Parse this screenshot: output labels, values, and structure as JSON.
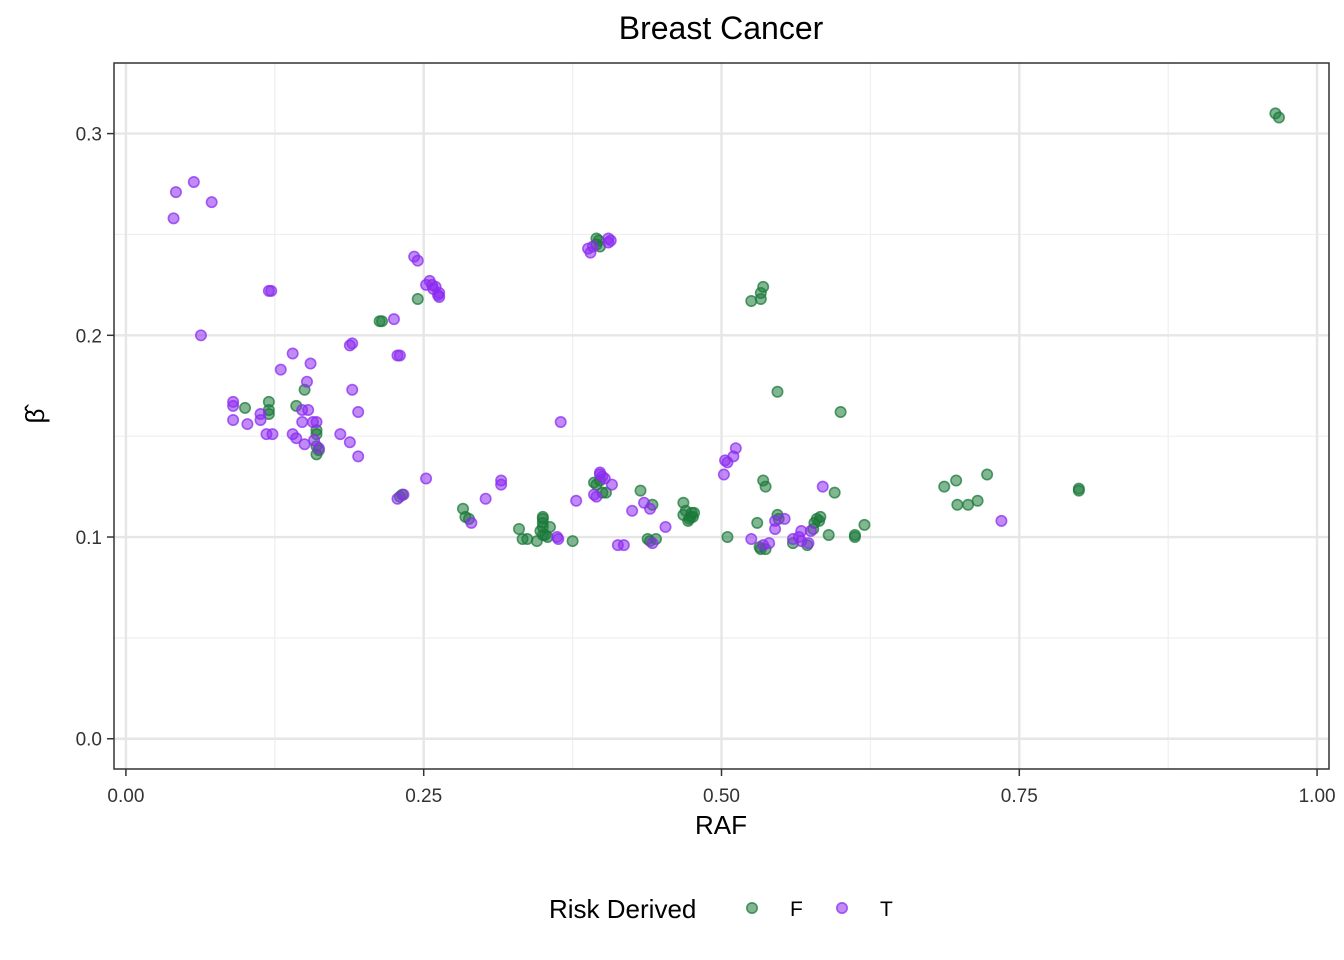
{
  "chart_data": {
    "type": "scatter",
    "title": "Breast Cancer",
    "xlabel": "RAF",
    "ylabel": "β̂",
    "xlim": [
      -0.01,
      1.01
    ],
    "ylim": [
      -0.015,
      0.335
    ],
    "x_ticks": [
      0.0,
      0.25,
      0.5,
      0.75,
      1.0
    ],
    "x_tick_labels": [
      "0.00",
      "0.25",
      "0.50",
      "0.75",
      "1.00"
    ],
    "y_ticks": [
      0.0,
      0.1,
      0.2,
      0.3
    ],
    "y_tick_labels": [
      "0.0",
      "0.1",
      "0.2",
      "0.3"
    ],
    "grid": true,
    "legend": {
      "title": "Risk Derived",
      "position": "bottom"
    },
    "series": [
      {
        "name": "F",
        "color": "#1b7a3a",
        "points": [
          [
            0.965,
            0.31
          ],
          [
            0.968,
            0.308
          ],
          [
            0.1,
            0.164
          ],
          [
            0.12,
            0.167
          ],
          [
            0.12,
            0.163
          ],
          [
            0.12,
            0.161
          ],
          [
            0.143,
            0.165
          ],
          [
            0.15,
            0.173
          ],
          [
            0.16,
            0.153
          ],
          [
            0.16,
            0.151
          ],
          [
            0.16,
            0.145
          ],
          [
            0.162,
            0.143
          ],
          [
            0.16,
            0.141
          ],
          [
            0.213,
            0.207
          ],
          [
            0.215,
            0.207
          ],
          [
            0.245,
            0.218
          ],
          [
            0.232,
            0.121
          ],
          [
            0.23,
            0.12
          ],
          [
            0.283,
            0.114
          ],
          [
            0.285,
            0.11
          ],
          [
            0.288,
            0.109
          ],
          [
            0.33,
            0.104
          ],
          [
            0.333,
            0.099
          ],
          [
            0.337,
            0.099
          ],
          [
            0.345,
            0.098
          ],
          [
            0.35,
            0.101
          ],
          [
            0.348,
            0.103
          ],
          [
            0.35,
            0.105
          ],
          [
            0.35,
            0.107
          ],
          [
            0.35,
            0.109
          ],
          [
            0.35,
            0.11
          ],
          [
            0.352,
            0.101
          ],
          [
            0.354,
            0.1
          ],
          [
            0.356,
            0.105
          ],
          [
            0.375,
            0.098
          ],
          [
            0.395,
            0.248
          ],
          [
            0.395,
            0.245
          ],
          [
            0.397,
            0.247
          ],
          [
            0.398,
            0.244
          ],
          [
            0.393,
            0.127
          ],
          [
            0.395,
            0.126
          ],
          [
            0.398,
            0.128
          ],
          [
            0.4,
            0.122
          ],
          [
            0.403,
            0.122
          ],
          [
            0.432,
            0.123
          ],
          [
            0.438,
            0.099
          ],
          [
            0.44,
            0.098
          ],
          [
            0.442,
            0.116
          ],
          [
            0.445,
            0.099
          ],
          [
            0.468,
            0.117
          ],
          [
            0.468,
            0.111
          ],
          [
            0.47,
            0.113
          ],
          [
            0.472,
            0.108
          ],
          [
            0.473,
            0.109
          ],
          [
            0.474,
            0.11
          ],
          [
            0.475,
            0.112
          ],
          [
            0.476,
            0.11
          ],
          [
            0.477,
            0.112
          ],
          [
            0.505,
            0.1
          ],
          [
            0.525,
            0.217
          ],
          [
            0.53,
            0.107
          ],
          [
            0.532,
            0.095
          ],
          [
            0.533,
            0.094
          ],
          [
            0.533,
            0.218
          ],
          [
            0.533,
            0.221
          ],
          [
            0.535,
            0.224
          ],
          [
            0.535,
            0.128
          ],
          [
            0.537,
            0.125
          ],
          [
            0.537,
            0.094
          ],
          [
            0.547,
            0.172
          ],
          [
            0.547,
            0.111
          ],
          [
            0.548,
            0.109
          ],
          [
            0.56,
            0.097
          ],
          [
            0.572,
            0.096
          ],
          [
            0.577,
            0.104
          ],
          [
            0.578,
            0.107
          ],
          [
            0.58,
            0.109
          ],
          [
            0.582,
            0.108
          ],
          [
            0.583,
            0.11
          ],
          [
            0.59,
            0.101
          ],
          [
            0.595,
            0.122
          ],
          [
            0.6,
            0.162
          ],
          [
            0.612,
            0.1
          ],
          [
            0.612,
            0.101
          ],
          [
            0.62,
            0.106
          ],
          [
            0.687,
            0.125
          ],
          [
            0.697,
            0.128
          ],
          [
            0.698,
            0.116
          ],
          [
            0.707,
            0.116
          ],
          [
            0.715,
            0.118
          ],
          [
            0.723,
            0.131
          ],
          [
            0.8,
            0.123
          ],
          [
            0.8,
            0.124
          ]
        ]
      },
      {
        "name": "T",
        "color": "#8c2cf0",
        "points": [
          [
            0.04,
            0.258
          ],
          [
            0.042,
            0.271
          ],
          [
            0.057,
            0.276
          ],
          [
            0.072,
            0.266
          ],
          [
            0.063,
            0.2
          ],
          [
            0.09,
            0.165
          ],
          [
            0.09,
            0.167
          ],
          [
            0.09,
            0.158
          ],
          [
            0.102,
            0.156
          ],
          [
            0.113,
            0.158
          ],
          [
            0.113,
            0.161
          ],
          [
            0.118,
            0.151
          ],
          [
            0.123,
            0.151
          ],
          [
            0.12,
            0.222
          ],
          [
            0.122,
            0.222
          ],
          [
            0.13,
            0.183
          ],
          [
            0.14,
            0.191
          ],
          [
            0.14,
            0.151
          ],
          [
            0.143,
            0.149
          ],
          [
            0.148,
            0.157
          ],
          [
            0.148,
            0.163
          ],
          [
            0.15,
            0.146
          ],
          [
            0.152,
            0.177
          ],
          [
            0.153,
            0.163
          ],
          [
            0.155,
            0.186
          ],
          [
            0.157,
            0.157
          ],
          [
            0.158,
            0.148
          ],
          [
            0.16,
            0.157
          ],
          [
            0.162,
            0.144
          ],
          [
            0.18,
            0.151
          ],
          [
            0.188,
            0.147
          ],
          [
            0.188,
            0.195
          ],
          [
            0.19,
            0.196
          ],
          [
            0.19,
            0.173
          ],
          [
            0.195,
            0.162
          ],
          [
            0.195,
            0.14
          ],
          [
            0.225,
            0.208
          ],
          [
            0.228,
            0.19
          ],
          [
            0.23,
            0.19
          ],
          [
            0.228,
            0.119
          ],
          [
            0.233,
            0.121
          ],
          [
            0.242,
            0.239
          ],
          [
            0.245,
            0.237
          ],
          [
            0.252,
            0.225
          ],
          [
            0.252,
            0.129
          ],
          [
            0.255,
            0.227
          ],
          [
            0.257,
            0.225
          ],
          [
            0.258,
            0.223
          ],
          [
            0.26,
            0.224
          ],
          [
            0.262,
            0.22
          ],
          [
            0.263,
            0.219
          ],
          [
            0.263,
            0.221
          ],
          [
            0.29,
            0.107
          ],
          [
            0.302,
            0.119
          ],
          [
            0.315,
            0.128
          ],
          [
            0.315,
            0.126
          ],
          [
            0.362,
            0.1
          ],
          [
            0.363,
            0.099
          ],
          [
            0.365,
            0.157
          ],
          [
            0.378,
            0.118
          ],
          [
            0.388,
            0.243
          ],
          [
            0.39,
            0.241
          ],
          [
            0.392,
            0.244
          ],
          [
            0.393,
            0.121
          ],
          [
            0.395,
            0.12
          ],
          [
            0.398,
            0.131
          ],
          [
            0.398,
            0.132
          ],
          [
            0.4,
            0.13
          ],
          [
            0.402,
            0.129
          ],
          [
            0.405,
            0.248
          ],
          [
            0.405,
            0.246
          ],
          [
            0.407,
            0.247
          ],
          [
            0.408,
            0.126
          ],
          [
            0.413,
            0.096
          ],
          [
            0.418,
            0.096
          ],
          [
            0.425,
            0.113
          ],
          [
            0.435,
            0.117
          ],
          [
            0.44,
            0.114
          ],
          [
            0.442,
            0.097
          ],
          [
            0.453,
            0.105
          ],
          [
            0.502,
            0.131
          ],
          [
            0.503,
            0.138
          ],
          [
            0.505,
            0.137
          ],
          [
            0.51,
            0.14
          ],
          [
            0.512,
            0.144
          ],
          [
            0.525,
            0.099
          ],
          [
            0.535,
            0.096
          ],
          [
            0.54,
            0.097
          ],
          [
            0.545,
            0.108
          ],
          [
            0.545,
            0.104
          ],
          [
            0.553,
            0.109
          ],
          [
            0.56,
            0.099
          ],
          [
            0.565,
            0.1
          ],
          [
            0.567,
            0.098
          ],
          [
            0.567,
            0.103
          ],
          [
            0.573,
            0.097
          ],
          [
            0.575,
            0.103
          ],
          [
            0.585,
            0.125
          ],
          [
            0.735,
            0.108
          ]
        ]
      }
    ]
  }
}
